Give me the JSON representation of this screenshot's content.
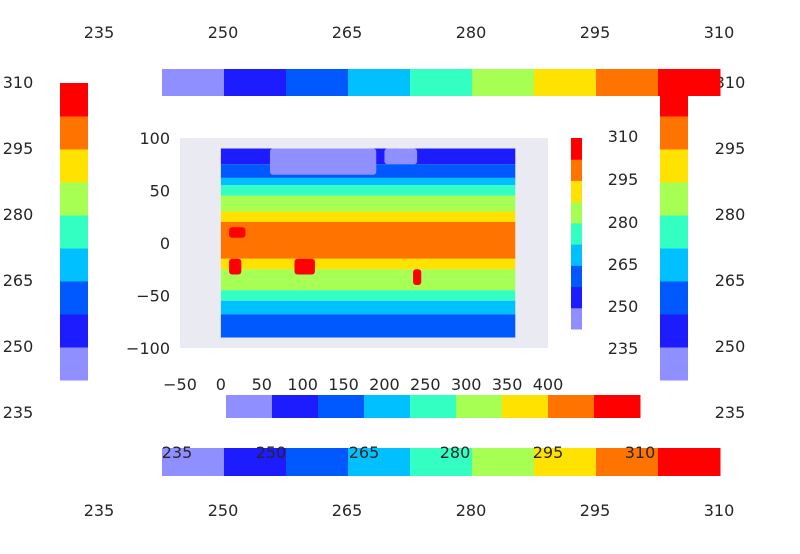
{
  "chart_data": {
    "type": "heatmap",
    "title": "",
    "xlabel": "",
    "ylabel": "",
    "xlim": [
      -50,
      400
    ],
    "ylim": [
      -100,
      100
    ],
    "x_ticks": [
      "−50",
      "0",
      "50",
      "100",
      "150",
      "200",
      "250",
      "300",
      "350",
      "400"
    ],
    "y_ticks": [
      "100",
      "50",
      "0",
      "−50",
      "−100"
    ],
    "grid": false,
    "background": "#eaeaf2",
    "data_extent": {
      "x": [
        0,
        360
      ],
      "y": [
        -90,
        90
      ]
    },
    "colorbar": {
      "levels": [
        235,
        240,
        245,
        250,
        255,
        260,
        265,
        270,
        275,
        280,
        285,
        290,
        295,
        300,
        305,
        310
      ],
      "tick_labels": [
        "235",
        "250",
        "265",
        "280",
        "295",
        "310"
      ],
      "colors": [
        "#8f8fff",
        "#1c1cff",
        "#0059ff",
        "#00c0ff",
        "#34ffc3",
        "#a6ff52",
        "#ffe200",
        "#ff7400",
        "#ff0000"
      ],
      "vertical_colors": [
        "#8f8fff",
        "#1c1cff",
        "#0059ff",
        "#00c0ff",
        "#34ffc3",
        "#a6ff52",
        "#ffe200",
        "#ff7400",
        "#ff0000"
      ]
    },
    "temperature_bands": [
      {
        "lat": [
          75,
          90
        ],
        "value": 248
      },
      {
        "lat": [
          62,
          75
        ],
        "value": 255
      },
      {
        "lat": [
          55,
          62
        ],
        "value": 263
      },
      {
        "lat": [
          45,
          55
        ],
        "value": 270
      },
      {
        "lat": [
          38,
          45
        ],
        "value": 277
      },
      {
        "lat": [
          30,
          38
        ],
        "value": 284
      },
      {
        "lat": [
          20,
          30
        ],
        "value": 291
      },
      {
        "lat": [
          -15,
          20
        ],
        "value": 297
      },
      {
        "lat": [
          -25,
          -15
        ],
        "value": 291
      },
      {
        "lat": [
          -35,
          -25
        ],
        "value": 284
      },
      {
        "lat": [
          -45,
          -35
        ],
        "value": 277
      },
      {
        "lat": [
          -55,
          -45
        ],
        "value": 270
      },
      {
        "lat": [
          -68,
          -55
        ],
        "value": 263
      },
      {
        "lat": [
          -90,
          -68
        ],
        "value": 255
      }
    ],
    "hot_spots": [
      {
        "lon": [
          10,
          25
        ],
        "lat": [
          -30,
          -15
        ],
        "value": 305
      },
      {
        "lon": [
          90,
          115
        ],
        "lat": [
          -30,
          -15
        ],
        "value": 305
      },
      {
        "lon": [
          235,
          245
        ],
        "lat": [
          -40,
          -25
        ],
        "value": 305
      },
      {
        "lon": [
          10,
          30
        ],
        "lat": [
          5,
          15
        ],
        "value": 302
      }
    ],
    "cold_spots": [
      {
        "lon": [
          60,
          190
        ],
        "lat": [
          65,
          90
        ],
        "value": 238
      },
      {
        "lon": [
          200,
          240
        ],
        "lat": [
          75,
          90
        ],
        "value": 238
      }
    ]
  }
}
